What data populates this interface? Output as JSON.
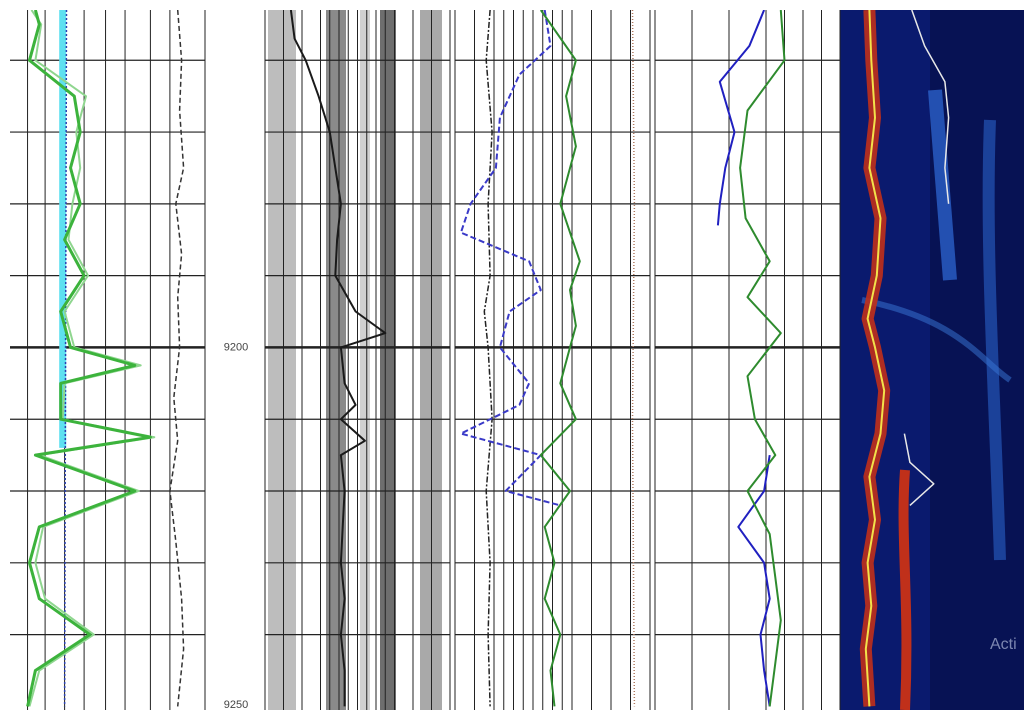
{
  "chart_data": {
    "type": "well-log",
    "ylim": [
      9153,
      9250.5
    ],
    "yticks": [
      9200,
      9250
    ],
    "depth_grid": [
      9160,
      9170,
      9180,
      9190,
      9200,
      9210,
      9220,
      9230,
      9240
    ],
    "watermark": "Acti",
    "tracks": [
      {
        "xlim": [
          0,
          10
        ],
        "xgrid": [
          0.9,
          1.8,
          2.8,
          3.8,
          4.9,
          5.9,
          7.2,
          8.2,
          10
        ],
        "series": [
          {
            "color": "#5ee0f0",
            "width": 7,
            "depth": [
              9153,
              9214
            ],
            "values": [
              2.7,
              2.7
            ]
          },
          {
            "color": "#2a40b0",
            "width": 1.5,
            "dash": "2 2",
            "depth": [
              9153,
              9250
            ],
            "values": [
              2.9,
              2.8
            ]
          },
          {
            "color": "#8fd68f",
            "width": 2,
            "depth": [
              9153,
              9155,
              9160,
              9165,
              9170,
              9175,
              9180,
              9185,
              9190,
              9195,
              9200,
              9202.5,
              9205,
              9210,
              9212.5,
              9215,
              9220,
              9225,
              9230,
              9235,
              9240,
              9245,
              9250
            ],
            "values": [
              1.1,
              1.6,
              1.3,
              3.9,
              3.4,
              3.6,
              3.2,
              3.0,
              4.0,
              2.8,
              3.3,
              6.7,
              2.8,
              2.7,
              7.4,
              1.5,
              6.6,
              1.7,
              1.3,
              1.8,
              4.3,
              1.5,
              1.0
            ]
          },
          {
            "color": "#3cb33c",
            "width": 3,
            "depth": [
              9153,
              9155,
              9160,
              9165,
              9170,
              9175,
              9180,
              9185,
              9190,
              9195,
              9200,
              9202.5,
              9205,
              9210,
              9212.5,
              9215,
              9220,
              9225,
              9230,
              9235,
              9240,
              9245,
              9250
            ],
            "values": [
              1.3,
              1.5,
              1.0,
              3.3,
              3.6,
              3.1,
              3.6,
              2.8,
              3.8,
              2.6,
              3.1,
              6.4,
              2.6,
              2.6,
              7.2,
              1.3,
              6.4,
              1.5,
              1.0,
              1.5,
              4.1,
              1.3,
              0.9
            ]
          },
          {
            "color": "#333333",
            "width": 1.5,
            "dash": "5 3",
            "depth": [
              9153,
              9160,
              9167,
              9175,
              9180,
              9187,
              9193,
              9200,
              9207,
              9213,
              9220,
              9227,
              9235,
              9242,
              9250
            ],
            "values": [
              8.6,
              8.8,
              8.7,
              8.9,
              8.5,
              8.8,
              8.6,
              8.7,
              8.4,
              8.6,
              8.2,
              8.5,
              8.8,
              8.9,
              8.6
            ]
          }
        ]
      },
      {
        "xlim": [
          0,
          10
        ],
        "xgrid": [
          0,
          1,
          2,
          3,
          3.5,
          4,
          4.5,
          5,
          5.5,
          6,
          6.5,
          7,
          8,
          9,
          10
        ],
        "series": [
          {
            "color": "#1a1a1a",
            "width": 2,
            "depth": [
              9153,
              9157,
              9160,
              9165,
              9170,
              9175,
              9180,
              9185,
              9190,
              9195,
              9198,
              9200,
              9205,
              9208,
              9210,
              9213,
              9215,
              9220,
              9225,
              9230,
              9235,
              9240,
              9245,
              9250
            ],
            "values": [
              1.4,
              1.6,
              2.2,
              2.9,
              3.5,
              3.8,
              4.1,
              3.9,
              3.8,
              4.9,
              6.5,
              4.1,
              4.3,
              4.9,
              4.1,
              5.4,
              4.1,
              4.3,
              4.2,
              4.1,
              4.3,
              4.1,
              4.3,
              4.3
            ]
          }
        ]
      },
      {
        "xlim": [
          0,
          10
        ],
        "xgrid": [
          0,
          1,
          2,
          2.5,
          3,
          3.5,
          4,
          4.5,
          5,
          5.5,
          6,
          7,
          8,
          9,
          10
        ],
        "series": [
          {
            "color": "#b07a60",
            "width": 1.5,
            "dash": "1 2",
            "depth": [
              9153,
              9180,
              9210,
              9250
            ],
            "values": [
              9.1,
              9.2,
              9.1,
              9.2
            ]
          },
          {
            "color": "#222222",
            "width": 1.5,
            "dash": "6 2 2 2",
            "depth": [
              9153,
              9160,
              9170,
              9180,
              9190,
              9195,
              9200,
              9210,
              9220,
              9230,
              9240,
              9250
            ],
            "values": [
              1.8,
              1.6,
              1.9,
              1.7,
              1.8,
              1.5,
              1.7,
              1.9,
              1.6,
              1.8,
              1.7,
              1.8
            ]
          },
          {
            "color": "#3a3ac8",
            "width": 2,
            "dash": "6 3",
            "depth": [
              9153,
              9158,
              9162,
              9168,
              9175,
              9180,
              9184,
              9188,
              9192,
              9195,
              9200,
              9205,
              9208,
              9212,
              9215,
              9220,
              9222
            ],
            "values": [
              4.6,
              4.9,
              3.3,
              2.3,
              2.1,
              0.8,
              0.3,
              3.8,
              4.4,
              2.8,
              2.3,
              3.8,
              3.3,
              0.3,
              4.4,
              2.6,
              5.4
            ]
          },
          {
            "color": "#2e8b2e",
            "width": 2,
            "depth": [
              9153,
              9160,
              9165,
              9172,
              9180,
              9188,
              9192,
              9197,
              9200,
              9205,
              9210,
              9215,
              9220,
              9225,
              9230,
              9235,
              9240,
              9245,
              9250
            ],
            "values": [
              4.4,
              6.2,
              5.7,
              6.2,
              5.4,
              6.4,
              5.9,
              6.2,
              5.9,
              5.4,
              6.2,
              4.4,
              5.9,
              4.6,
              5.1,
              4.6,
              5.4,
              4.9,
              5.1
            ]
          }
        ]
      },
      {
        "xlim": [
          0,
          10
        ],
        "xgrid": [
          0,
          2,
          4,
          6,
          7,
          8,
          9,
          10
        ],
        "series": [
          {
            "color": "#2020c0",
            "width": 2,
            "depth": [
              9153,
              9158,
              9163,
              9170,
              9175,
              9180,
              9183,
              9212,
              9215,
              9220,
              9225,
              9230,
              9235,
              9240,
              9245,
              9250
            ],
            "values": [
              5.9,
              5.1,
              3.5,
              4.3,
              3.8,
              3.5,
              3.4,
              null,
              6.2,
              5.9,
              4.5,
              5.9,
              6.2,
              5.7,
              5.9,
              6.2
            ]
          },
          {
            "color": "#2e8b2e",
            "width": 2,
            "depth": [
              9153,
              9160,
              9167,
              9175,
              9182,
              9188,
              9193,
              9198,
              9204,
              9210,
              9215,
              9220,
              9226,
              9232,
              9238,
              9244,
              9250
            ],
            "values": [
              6.8,
              7.0,
              5.0,
              4.6,
              4.9,
              6.2,
              5.0,
              6.8,
              5.0,
              5.4,
              6.5,
              5.0,
              6.2,
              6.5,
              6.8,
              6.5,
              6.2
            ]
          }
        ]
      },
      {
        "xlim": [
          0,
          10
        ],
        "xgrid": [],
        "series": [
          {
            "color": "#f2e24a",
            "width": 2,
            "halo": "#c0301a",
            "depth": [
              9153,
              9160,
              9168,
              9175,
              9182,
              9190,
              9196,
              9200,
              9206,
              9212,
              9218,
              9224,
              9230,
              9236,
              9242,
              9250
            ],
            "values": [
              1.6,
              1.7,
              1.9,
              1.6,
              2.2,
              2.0,
              1.5,
              1.9,
              2.4,
              2.2,
              1.6,
              1.9,
              1.5,
              1.7,
              1.4,
              1.6
            ]
          },
          {
            "color": "#e8e8e8",
            "width": 1.5,
            "depth": [
              9153,
              9158,
              9163,
              9168,
              9175,
              9180
            ],
            "values": [
              3.9,
              4.6,
              5.7,
              5.9,
              5.7,
              5.9
            ]
          },
          {
            "color": "#e8e8e8",
            "width": 1.5,
            "depth": [
              9212,
              9216,
              9219,
              9222
            ],
            "values": [
              3.5,
              3.8,
              5.1,
              3.8
            ]
          }
        ]
      }
    ]
  }
}
